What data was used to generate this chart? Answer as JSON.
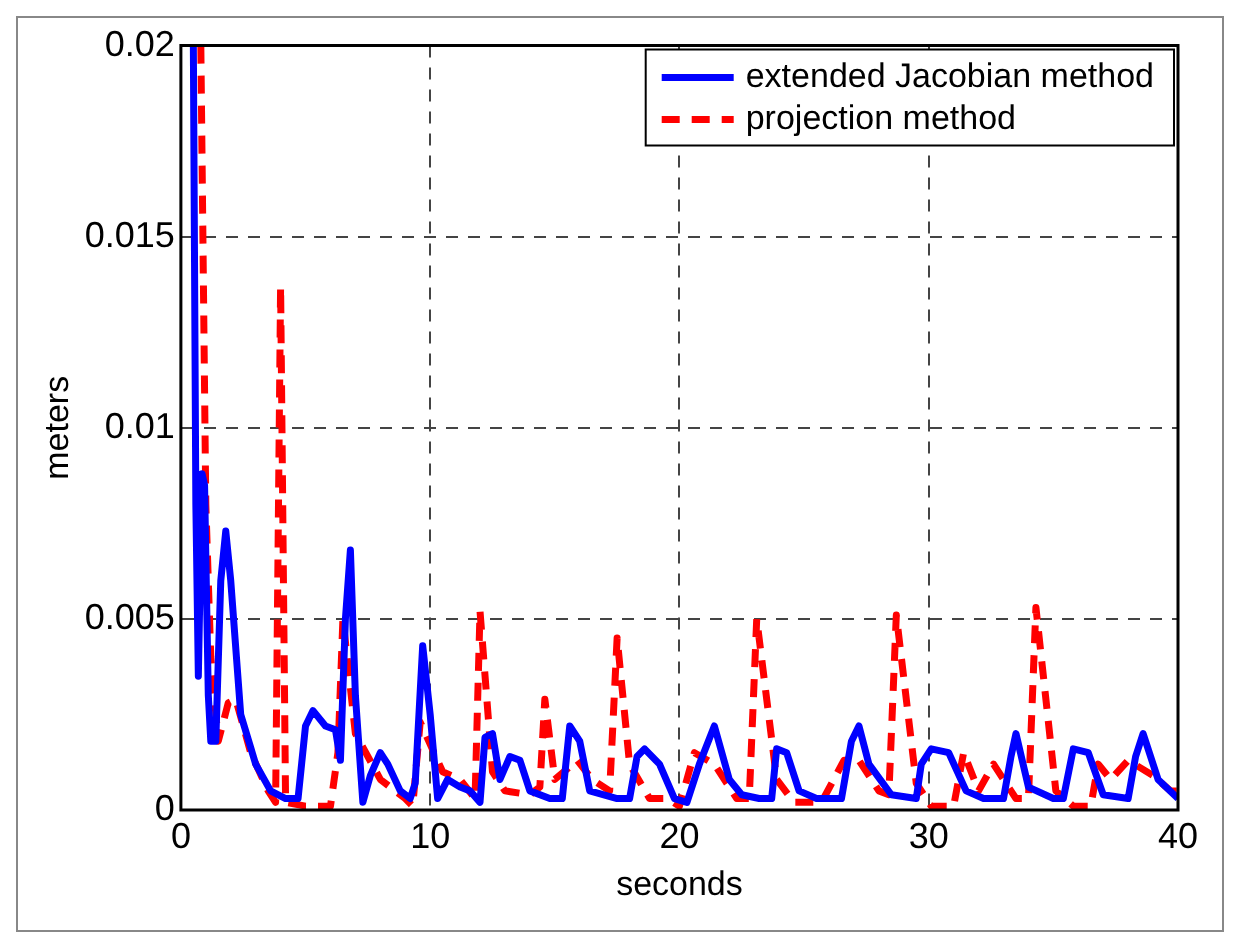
{
  "chart_data": {
    "type": "line",
    "xlabel": "seconds",
    "ylabel": "meters",
    "xlim": [
      0,
      40
    ],
    "xticks": [
      0,
      10,
      20,
      30,
      40
    ],
    "ylim": [
      0,
      0.02
    ],
    "yticks": [
      0,
      0.005,
      0.01,
      0.015,
      0.02
    ],
    "grid": true,
    "legend": "top right",
    "marker": "none",
    "series": [
      {
        "name": "extended Jacobian method",
        "color": "#0000ff",
        "line_style": "solid",
        "x": [
          0.5,
          0.6,
          0.7,
          0.85,
          0.95,
          1.1,
          1.2,
          1.4,
          1.6,
          1.8,
          2.0,
          2.4,
          3.0,
          3.6,
          4.2,
          4.7,
          5.0,
          5.3,
          5.8,
          6.2,
          6.4,
          6.6,
          6.8,
          7.0,
          7.3,
          7.6,
          8.0,
          8.3,
          8.8,
          9.2,
          9.4,
          9.7,
          10.0,
          10.3,
          10.7,
          11.2,
          11.6,
          12.0,
          12.2,
          12.5,
          12.8,
          13.2,
          13.6,
          14.0,
          14.8,
          15.3,
          15.6,
          16.0,
          16.4,
          17.5,
          18.0,
          18.3,
          18.6,
          19.2,
          19.8,
          20.3,
          20.8,
          21.4,
          22.0,
          22.5,
          23.2,
          23.7,
          23.9,
          24.3,
          24.8,
          25.5,
          26.5,
          26.9,
          27.2,
          27.6,
          28.5,
          29.5,
          29.7,
          30.1,
          30.8,
          31.5,
          32.2,
          33.0,
          33.3,
          33.5,
          34.0,
          35.0,
          35.4,
          35.8,
          36.4,
          37.0,
          38.0,
          38.3,
          38.6,
          39.2,
          40.0
        ],
        "values": [
          0.02,
          0.008,
          0.0035,
          0.0088,
          0.0085,
          0.003,
          0.0018,
          0.0018,
          0.006,
          0.0073,
          0.006,
          0.0025,
          0.0012,
          0.0005,
          0.0003,
          0.0003,
          0.0022,
          0.0026,
          0.0022,
          0.0021,
          0.0013,
          0.005,
          0.0068,
          0.003,
          0.0002,
          0.0009,
          0.0015,
          0.0012,
          0.0005,
          0.0003,
          0.0007,
          0.0043,
          0.0025,
          0.0003,
          0.0008,
          0.0006,
          0.0005,
          0.0002,
          0.0019,
          0.002,
          0.0008,
          0.0014,
          0.0013,
          0.0005,
          0.0003,
          0.0003,
          0.0022,
          0.0018,
          0.0005,
          0.0003,
          0.0003,
          0.0014,
          0.0016,
          0.0012,
          0.0003,
          0.0002,
          0.0012,
          0.0022,
          0.0008,
          0.0004,
          0.0003,
          0.0003,
          0.0016,
          0.0015,
          0.0005,
          0.0003,
          0.0003,
          0.0018,
          0.0022,
          0.0012,
          0.0004,
          0.0003,
          0.0012,
          0.0016,
          0.0015,
          0.0005,
          0.0003,
          0.0003,
          0.0014,
          0.002,
          0.0006,
          0.0003,
          0.0003,
          0.0016,
          0.0015,
          0.0004,
          0.0003,
          0.0014,
          0.002,
          0.0008,
          0.0003
        ]
      },
      {
        "name": "projection method",
        "color": "#ff0000",
        "line_style": "dashed",
        "x": [
          0.8,
          1.0,
          1.2,
          1.5,
          1.9,
          2.2,
          2.8,
          3.5,
          3.8,
          4.0,
          4.2,
          5.0,
          6.0,
          6.3,
          6.5,
          7.0,
          8.0,
          9.0,
          9.3,
          9.6,
          10.5,
          11.2,
          11.8,
          12.0,
          12.5,
          13.0,
          14.0,
          14.4,
          14.6,
          15.0,
          15.9,
          16.5,
          17.2,
          17.5,
          18.0,
          18.8,
          19.5,
          20.0,
          20.6,
          21.4,
          22.3,
          22.8,
          23.1,
          23.9,
          24.6,
          25.7,
          26.6,
          27.2,
          28.0,
          28.4,
          28.7,
          29.5,
          30.1,
          31.0,
          31.4,
          32.0,
          32.6,
          33.5,
          34.0,
          34.3,
          35.1,
          35.8,
          36.5,
          36.8,
          37.3,
          38.0,
          39.0,
          39.7,
          40.0
        ],
        "values": [
          0.02,
          0.008,
          0.004,
          0.0018,
          0.0028,
          0.0029,
          0.0015,
          0.0005,
          0.0002,
          0.0137,
          0.0002,
          0.0001,
          0.0001,
          0.0015,
          0.005,
          0.002,
          0.0008,
          0.0003,
          0.0001,
          0.0023,
          0.001,
          0.0008,
          0.0003,
          0.0052,
          0.001,
          0.0005,
          0.0004,
          0.0006,
          0.0029,
          0.0008,
          0.0013,
          0.0008,
          0.0005,
          0.0045,
          0.0012,
          0.0003,
          0.0003,
          0.0001,
          0.0015,
          0.0012,
          0.0003,
          0.0003,
          0.005,
          0.0008,
          0.0002,
          0.0002,
          0.0013,
          0.0013,
          0.0005,
          0.0004,
          0.0051,
          0.0007,
          0.0001,
          0.0001,
          0.0015,
          0.0005,
          0.0012,
          0.0003,
          0.0003,
          0.0053,
          0.0005,
          0.0001,
          0.0001,
          0.0012,
          0.0008,
          0.0013,
          0.0009,
          0.0005,
          0.0005
        ]
      }
    ]
  }
}
